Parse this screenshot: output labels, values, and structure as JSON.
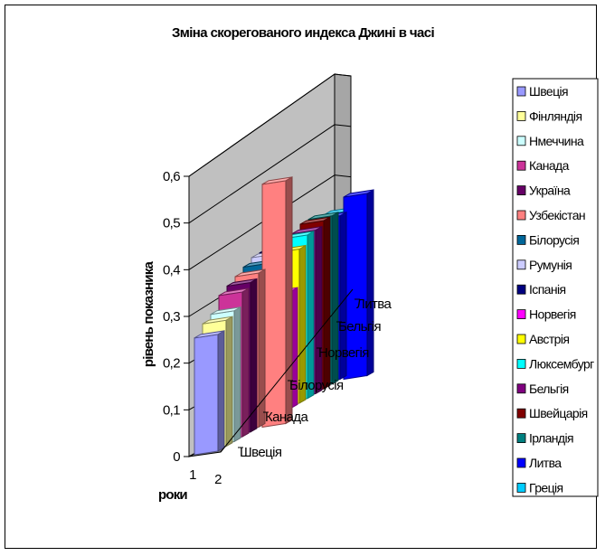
{
  "chart_data": {
    "type": "bar",
    "title": "Зміна скорегованого индекса Джині в часі",
    "ylabel": "рівень показника",
    "xlabel": "роки",
    "x_ticks": [
      "1",
      "2"
    ],
    "depth_ticks": [
      "Швеція",
      "Канада",
      "Білорусія",
      "Норвегія",
      "Бельгія",
      "Литва"
    ],
    "y_ticks": [
      "0",
      "0,1",
      "0,2",
      "0,3",
      "0,4",
      "0,5",
      "0,6"
    ],
    "ylim": [
      0,
      0.6
    ],
    "legend_position": "right",
    "series": [
      {
        "name": "Швеція",
        "color": "#9999FF",
        "values": [
          0.25,
          null
        ]
      },
      {
        "name": "Фінляндія",
        "color": "#FFFF99",
        "values": [
          0.27,
          null
        ]
      },
      {
        "name": "Нмеччина",
        "color": "#CCFFFF",
        "values": [
          0.28,
          null
        ]
      },
      {
        "name": "Канада",
        "color": "#CC3399",
        "values": [
          0.31,
          null
        ]
      },
      {
        "name": "Україна",
        "color": "#660066",
        "values": [
          0.32,
          null
        ]
      },
      {
        "name": "Узбекістан",
        "color": "#FF8080",
        "values": [
          0.33,
          0.52
        ]
      },
      {
        "name": "Білорусія",
        "color": "#006699",
        "values": [
          0.34,
          null
        ]
      },
      {
        "name": "Румунія",
        "color": "#CCCCFF",
        "values": [
          0.35,
          null
        ]
      },
      {
        "name": "Іспанія",
        "color": "#000080",
        "values": [
          0.35,
          null
        ]
      },
      {
        "name": "Норвегія",
        "color": "#FF00FF",
        "values": [
          0.25,
          null
        ]
      },
      {
        "name": "Австрія",
        "color": "#FFFF00",
        "values": [
          0.33,
          null
        ]
      },
      {
        "name": "Люксембург",
        "color": "#00FFFF",
        "values": [
          0.35,
          null
        ]
      },
      {
        "name": "Бельгія",
        "color": "#800080",
        "values": [
          0.35,
          null
        ]
      },
      {
        "name": "Швейцарія",
        "color": "#800000",
        "values": [
          0.36,
          null
        ]
      },
      {
        "name": "Ірландія",
        "color": "#008080",
        "values": [
          0.36,
          null
        ]
      },
      {
        "name": "Литва",
        "color": "#0000FF",
        "values": [
          0.35,
          0.39
        ]
      },
      {
        "name": "Греція",
        "color": "#00CCFF",
        "values": [
          0.35,
          null
        ]
      }
    ]
  }
}
